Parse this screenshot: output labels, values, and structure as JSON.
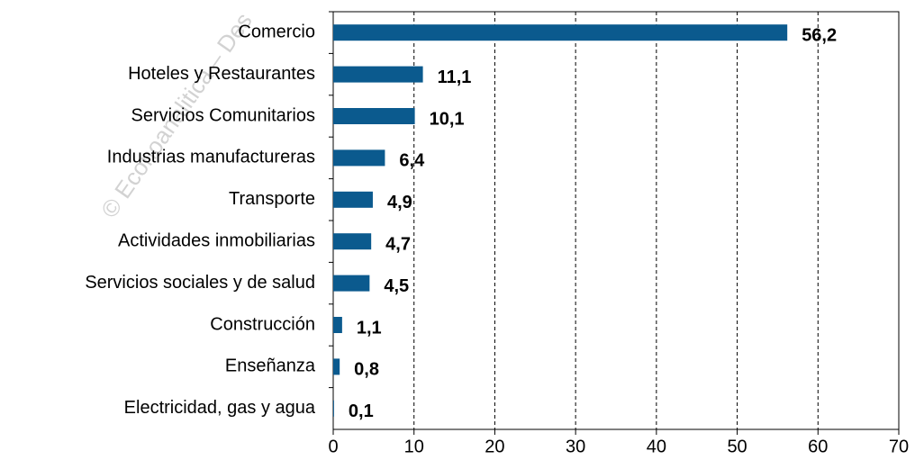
{
  "chart_data": {
    "type": "barh",
    "categories": [
      "Comercio",
      "Hoteles y Restaurantes",
      "Servicios Comunitarios",
      "Industrias manufactureras",
      "Transporte",
      "Actividades inmobiliarias",
      "Servicios sociales y de salud",
      "Construcción",
      "Enseñanza",
      "Electricidad, gas y agua"
    ],
    "values": [
      56.2,
      11.1,
      10.1,
      6.4,
      4.9,
      4.7,
      4.5,
      1.1,
      0.8,
      0.1
    ],
    "value_labels": [
      "56,2",
      "11,1",
      "10,1",
      "6,4",
      "4,9",
      "4,7",
      "4,5",
      "1,1",
      "0,8",
      "0,1"
    ],
    "color": "#0b5a8e",
    "xlim": [
      0,
      70
    ],
    "xticks": [
      0,
      10,
      20,
      30,
      40,
      50,
      60,
      70
    ],
    "grid": true,
    "watermark": "© Econoanalitica – Des"
  }
}
